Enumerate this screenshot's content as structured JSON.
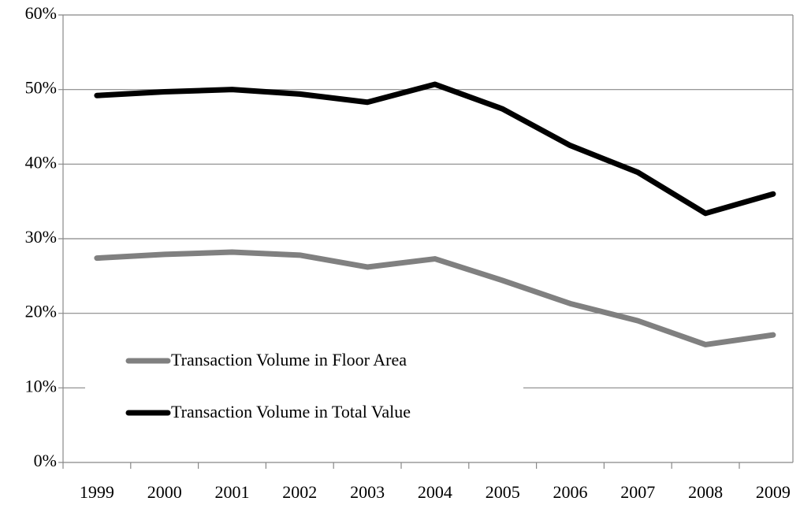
{
  "chart_data": {
    "type": "line",
    "categories": [
      "1999",
      "2000",
      "2001",
      "2002",
      "2003",
      "2004",
      "2005",
      "2006",
      "2007",
      "2008",
      "2009"
    ],
    "series": [
      {
        "name": "Transaction Volume in Floor Area",
        "color": "#808080",
        "values": [
          27.4,
          27.9,
          28.2,
          27.8,
          26.2,
          27.3,
          24.4,
          21.3,
          19.0,
          15.8,
          17.1
        ]
      },
      {
        "name": "Transaction Volume in Total Value",
        "color": "#000000",
        "values": [
          49.2,
          49.7,
          50.0,
          49.4,
          48.3,
          50.7,
          47.4,
          42.5,
          38.9,
          33.4,
          36.0
        ]
      }
    ],
    "ylim": [
      0,
      60
    ],
    "yticks": [
      {
        "value": 0,
        "label": "0%"
      },
      {
        "value": 10,
        "label": "10%"
      },
      {
        "value": 20,
        "label": "20%"
      },
      {
        "value": 30,
        "label": "30%"
      },
      {
        "value": 40,
        "label": "40%"
      },
      {
        "value": 50,
        "label": "50%"
      },
      {
        "value": 60,
        "label": "60%"
      }
    ],
    "grid": true,
    "legend": "lower-left"
  }
}
